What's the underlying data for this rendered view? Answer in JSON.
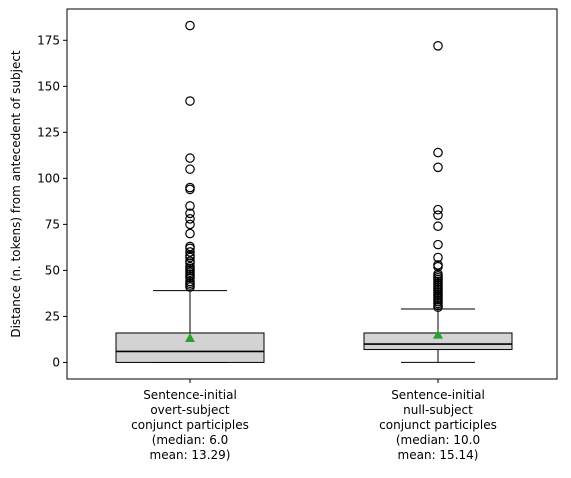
{
  "chart_data": {
    "type": "box",
    "ylabel": "Distance (n. tokens) from antecedent of subject",
    "xlabel": "",
    "title": "",
    "ylim": [
      -9,
      192
    ],
    "yticks": [
      0,
      25,
      50,
      75,
      100,
      125,
      150,
      175
    ],
    "grid": false,
    "legend": "none",
    "colors": {
      "box_fill": "#d3d3d3",
      "median": "#000000",
      "mean_marker": "#2ca02c",
      "outlier": "#000000"
    },
    "series": [
      {
        "label_lines": [
          "Sentence-initial",
          "overt-subject",
          "conjunct participles",
          "(median: 6.0",
          "mean: 13.29)"
        ],
        "whisker_low": 0,
        "q1": 0,
        "median": 6.0,
        "q3": 16,
        "whisker_high": 39,
        "mean": 13.29,
        "outliers": [
          41,
          42,
          43,
          44,
          46,
          47,
          48,
          49,
          50,
          51,
          52,
          54,
          55,
          57,
          58,
          60,
          62,
          63,
          70,
          75,
          78,
          81,
          85,
          94,
          95,
          105,
          111,
          142,
          183
        ]
      },
      {
        "label_lines": [
          "Sentence-initial",
          "null-subject",
          "conjunct participles",
          "(median: 10.0",
          "mean: 15.14)"
        ],
        "whisker_low": 0,
        "q1": 7,
        "median": 10.0,
        "q3": 16,
        "whisker_high": 29,
        "mean": 15.14,
        "outliers": [
          30,
          31,
          32,
          33,
          34,
          35,
          36,
          37,
          38,
          39,
          40,
          41,
          42,
          43,
          44,
          45,
          46,
          47,
          48,
          52,
          53,
          57,
          64,
          74,
          80,
          83,
          106,
          114,
          172
        ]
      }
    ]
  }
}
